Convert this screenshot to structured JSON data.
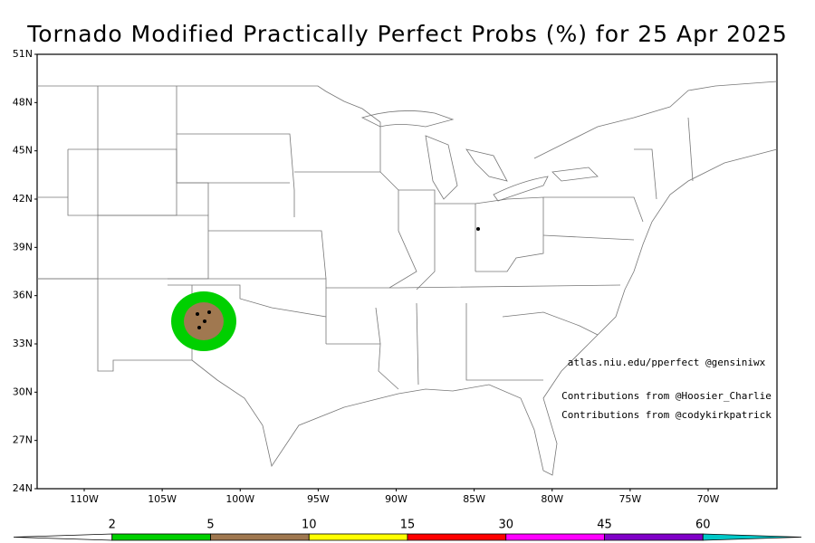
{
  "header": {
    "title": "Tornado Modified Practically Perfect Probs (%) for 25 Apr 2025"
  },
  "map": {
    "lat_labels": [
      "51N",
      "48N",
      "45N",
      "42N",
      "39N",
      "36N",
      "33N",
      "30N",
      "27N",
      "24N"
    ],
    "lon_labels": [
      "110W",
      "105W",
      "100W",
      "95W",
      "90W",
      "85W",
      "80W",
      "75W",
      "70W"
    ],
    "annotations": [
      "atlas.niu.edu/pperfect @gensiniwx",
      "Contributions from @Hoosier_Charlie",
      "Contributions from @codykirkpatrick"
    ]
  },
  "colorbar": {
    "levels": [
      2,
      5,
      10,
      15,
      30,
      45,
      60
    ],
    "colors": [
      "#ffffff",
      "#00d000",
      "#a07850",
      "#ffff00",
      "#ff0000",
      "#ff00ff",
      "#8000c8",
      "#00c8c8"
    ]
  }
}
